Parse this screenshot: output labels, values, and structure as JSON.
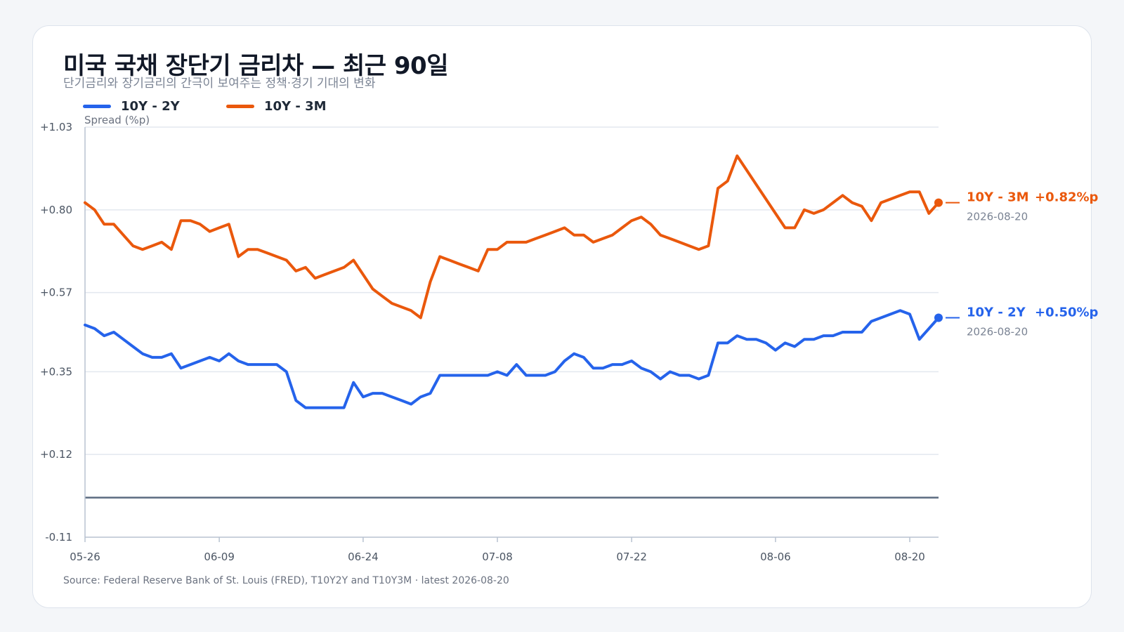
{
  "title": "미국 국채 장단기 금리차 — 최근 90일",
  "subtitle": "단기금리와 장기금리의 간극이 보여주는 정책·경기 기대의 변화",
  "source": "Source: Federal Reserve Bank of St. Louis (FRED), T10Y2Y and T10Y3M · latest 2026-08-20",
  "chart_data": {
    "type": "line",
    "ylabel": "Spread (%p)",
    "xlabel": "",
    "ylim": [
      -0.11,
      1.03
    ],
    "y_ticks": [
      "+1.03",
      "+0.80",
      "+0.57",
      "+0.35",
      "+0.12",
      "-0.11"
    ],
    "y_tick_values": [
      1.03,
      0.8,
      0.57,
      0.35,
      0.12,
      -0.11
    ],
    "x_ticks": [
      "05-26",
      "06-09",
      "06-24",
      "07-08",
      "07-22",
      "08-06",
      "08-20"
    ],
    "x_tick_index": [
      0,
      14,
      29,
      43,
      57,
      72,
      86
    ],
    "grid": true,
    "zero_line": 0,
    "legend_position": "top-left",
    "series": [
      {
        "name": "10Y - 2Y",
        "color": "#2563eb",
        "end_value_label": "+0.50%p",
        "end_date": "2026-08-20",
        "values": [
          0.48,
          0.47,
          0.45,
          0.46,
          0.44,
          0.42,
          0.4,
          0.39,
          0.39,
          0.4,
          0.36,
          0.37,
          0.38,
          0.39,
          0.38,
          0.4,
          0.38,
          0.37,
          0.37,
          0.37,
          0.37,
          0.35,
          0.27,
          0.25,
          0.25,
          0.25,
          0.25,
          0.25,
          0.32,
          0.28,
          0.29,
          0.29,
          0.28,
          0.27,
          0.26,
          0.28,
          0.29,
          0.34,
          0.34,
          0.34,
          0.34,
          0.34,
          0.34,
          0.35,
          0.34,
          0.37,
          0.34,
          0.34,
          0.34,
          0.35,
          0.38,
          0.4,
          0.39,
          0.36,
          0.36,
          0.37,
          0.37,
          0.38,
          0.36,
          0.35,
          0.33,
          0.35,
          0.34,
          0.34,
          0.33,
          0.34,
          0.43,
          0.43,
          0.45,
          0.44,
          0.44,
          0.43,
          0.41,
          0.43,
          0.42,
          0.44,
          0.44,
          0.45,
          0.45,
          0.46,
          0.46,
          0.46,
          0.49,
          0.5,
          0.51,
          0.52,
          0.51,
          0.44,
          0.47,
          0.5
        ]
      },
      {
        "name": "10Y - 3M",
        "color": "#ea580c",
        "end_value_label": "+0.82%p",
        "end_date": "2026-08-20",
        "values": [
          0.82,
          0.8,
          0.76,
          0.76,
          0.73,
          0.7,
          0.69,
          0.7,
          0.71,
          0.69,
          0.77,
          0.77,
          0.76,
          0.74,
          0.75,
          0.76,
          0.67,
          0.69,
          0.69,
          0.68,
          0.67,
          0.66,
          0.63,
          0.64,
          0.61,
          0.62,
          0.63,
          0.64,
          0.66,
          0.62,
          0.58,
          0.56,
          0.54,
          0.53,
          0.52,
          0.5,
          0.6,
          0.67,
          0.66,
          0.65,
          0.64,
          0.63,
          0.69,
          0.69,
          0.71,
          0.71,
          0.71,
          0.72,
          0.73,
          0.74,
          0.75,
          0.73,
          0.73,
          0.71,
          0.72,
          0.73,
          0.75,
          0.77,
          0.78,
          0.76,
          0.73,
          0.72,
          0.71,
          0.7,
          0.69,
          0.7,
          0.86,
          0.88,
          0.95,
          0.91,
          0.87,
          0.83,
          0.79,
          0.75,
          0.75,
          0.8,
          0.79,
          0.8,
          0.82,
          0.84,
          0.82,
          0.81,
          0.77,
          0.82,
          0.83,
          0.84,
          0.85,
          0.85,
          0.79,
          0.82
        ]
      }
    ]
  }
}
